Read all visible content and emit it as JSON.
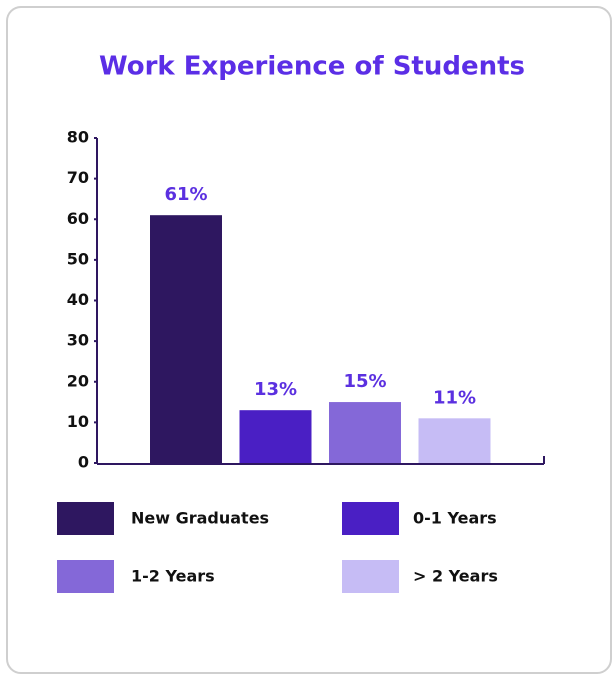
{
  "chart_data": {
    "type": "bar",
    "title": "Work Experience of Students",
    "categories": [
      "New Graduates",
      "0-1 Years",
      "1-2 Years",
      "> 2 Years"
    ],
    "values": [
      61,
      13,
      15,
      11
    ],
    "value_labels": [
      "61%",
      "13%",
      "15%",
      "11%"
    ],
    "colors": [
      "#2e1760",
      "#4a1fc4",
      "#8468d8",
      "#c6bcf5"
    ],
    "ylim": [
      0,
      80
    ],
    "yticks": [
      0,
      10,
      20,
      30,
      40,
      50,
      60,
      70,
      80
    ],
    "grid": false
  }
}
